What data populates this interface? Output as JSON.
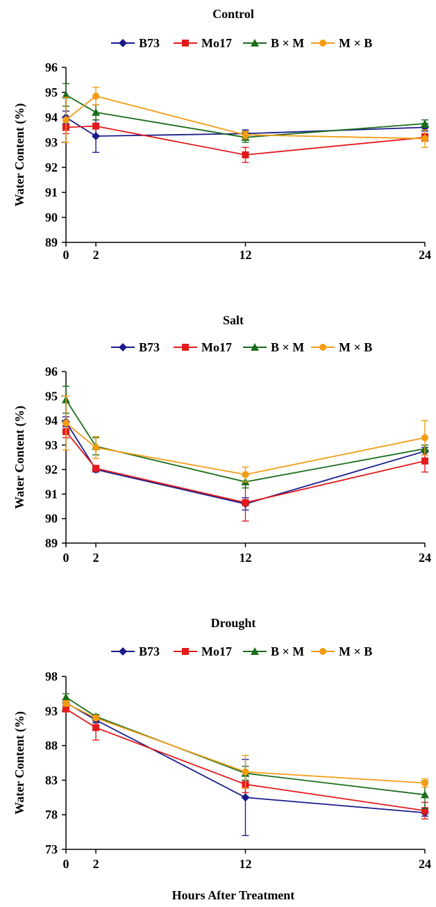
{
  "figure": {
    "xlabel": "Hours After Treatment"
  },
  "chart_data": [
    {
      "type": "line",
      "title": "Control",
      "xlabel": "",
      "ylabel": "Water Content (%)",
      "x": [
        0,
        2,
        12,
        24
      ],
      "xticks": [
        0,
        2,
        12,
        24
      ],
      "ylim": [
        89,
        96
      ],
      "yticks": [
        89,
        90,
        91,
        92,
        93,
        94,
        95,
        96
      ],
      "legend": "top",
      "grid": false,
      "series": [
        {
          "name": "B73",
          "color": "#1a1a8c",
          "marker": "diamond",
          "values": [
            94.0,
            93.25,
            93.35,
            93.6
          ],
          "errors": [
            0.25,
            0.65,
            0.15,
            0.15
          ]
        },
        {
          "name": "Mo17",
          "color": "#e31a1c",
          "marker": "square",
          "values": [
            93.6,
            93.65,
            92.5,
            93.2
          ],
          "errors": [
            0.25,
            0.1,
            0.3,
            0.15
          ]
        },
        {
          "name": "B × M",
          "color": "#1a6e1a",
          "marker": "triangle",
          "values": [
            94.9,
            94.2,
            93.2,
            93.75
          ],
          "errors": [
            0.45,
            0.3,
            0.2,
            0.15
          ]
        },
        {
          "name": "M × B",
          "color": "#f39c12",
          "marker": "circle",
          "values": [
            93.9,
            94.85,
            93.3,
            93.15
          ],
          "errors": [
            0.9,
            0.35,
            0.15,
            0.35
          ]
        }
      ]
    },
    {
      "type": "line",
      "title": "Salt",
      "xlabel": "",
      "ylabel": "Water Content (%)",
      "x": [
        0,
        2,
        12,
        24
      ],
      "xticks": [
        0,
        2,
        12,
        24
      ],
      "ylim": [
        89,
        96
      ],
      "yticks": [
        89,
        90,
        91,
        92,
        93,
        94,
        95,
        96
      ],
      "legend": "top",
      "grid": false,
      "series": [
        {
          "name": "B73",
          "color": "#1a1a8c",
          "marker": "diamond",
          "values": [
            93.95,
            92.0,
            90.6,
            92.75
          ],
          "errors": [
            0.2,
            0.1,
            0.25,
            0.15
          ]
        },
        {
          "name": "Mo17",
          "color": "#e31a1c",
          "marker": "square",
          "values": [
            93.55,
            92.05,
            90.65,
            92.35
          ],
          "errors": [
            0.25,
            0.1,
            0.75,
            0.45
          ]
        },
        {
          "name": "B × M",
          "color": "#1a6e1a",
          "marker": "triangle",
          "values": [
            94.85,
            92.95,
            91.5,
            92.85
          ],
          "errors": [
            0.55,
            0.35,
            0.25,
            0.15
          ]
        },
        {
          "name": "M × B",
          "color": "#f39c12",
          "marker": "circle",
          "values": [
            93.9,
            92.9,
            91.8,
            93.3
          ],
          "errors": [
            1.1,
            0.45,
            0.3,
            0.7
          ]
        }
      ]
    },
    {
      "type": "line",
      "title": "Drought",
      "xlabel": "",
      "ylabel": "Water Content (%)",
      "x": [
        0,
        2,
        12,
        24
      ],
      "xticks": [
        0,
        2,
        12,
        24
      ],
      "ylim": [
        73,
        98
      ],
      "yticks": [
        73,
        78,
        83,
        88,
        93,
        98
      ],
      "legend": "top",
      "grid": false,
      "series": [
        {
          "name": "B73",
          "color": "#1a1a8c",
          "marker": "diamond",
          "values": [
            94.2,
            91.7,
            80.5,
            78.3
          ],
          "errors": [
            0.4,
            0.4,
            5.5,
            0.5
          ]
        },
        {
          "name": "Mo17",
          "color": "#e31a1c",
          "marker": "square",
          "values": [
            93.3,
            90.6,
            82.4,
            78.6
          ],
          "errors": [
            0.4,
            1.8,
            1.2,
            1.2
          ]
        },
        {
          "name": "B × M",
          "color": "#1a6e1a",
          "marker": "triangle",
          "values": [
            95.0,
            92.2,
            84.0,
            80.9
          ],
          "errors": [
            0.5,
            0.3,
            1.0,
            2.0
          ]
        },
        {
          "name": "M × B",
          "color": "#f39c12",
          "marker": "circle",
          "values": [
            94.1,
            92.0,
            84.2,
            82.6
          ],
          "errors": [
            0.4,
            0.3,
            2.4,
            0.6
          ]
        }
      ]
    }
  ]
}
